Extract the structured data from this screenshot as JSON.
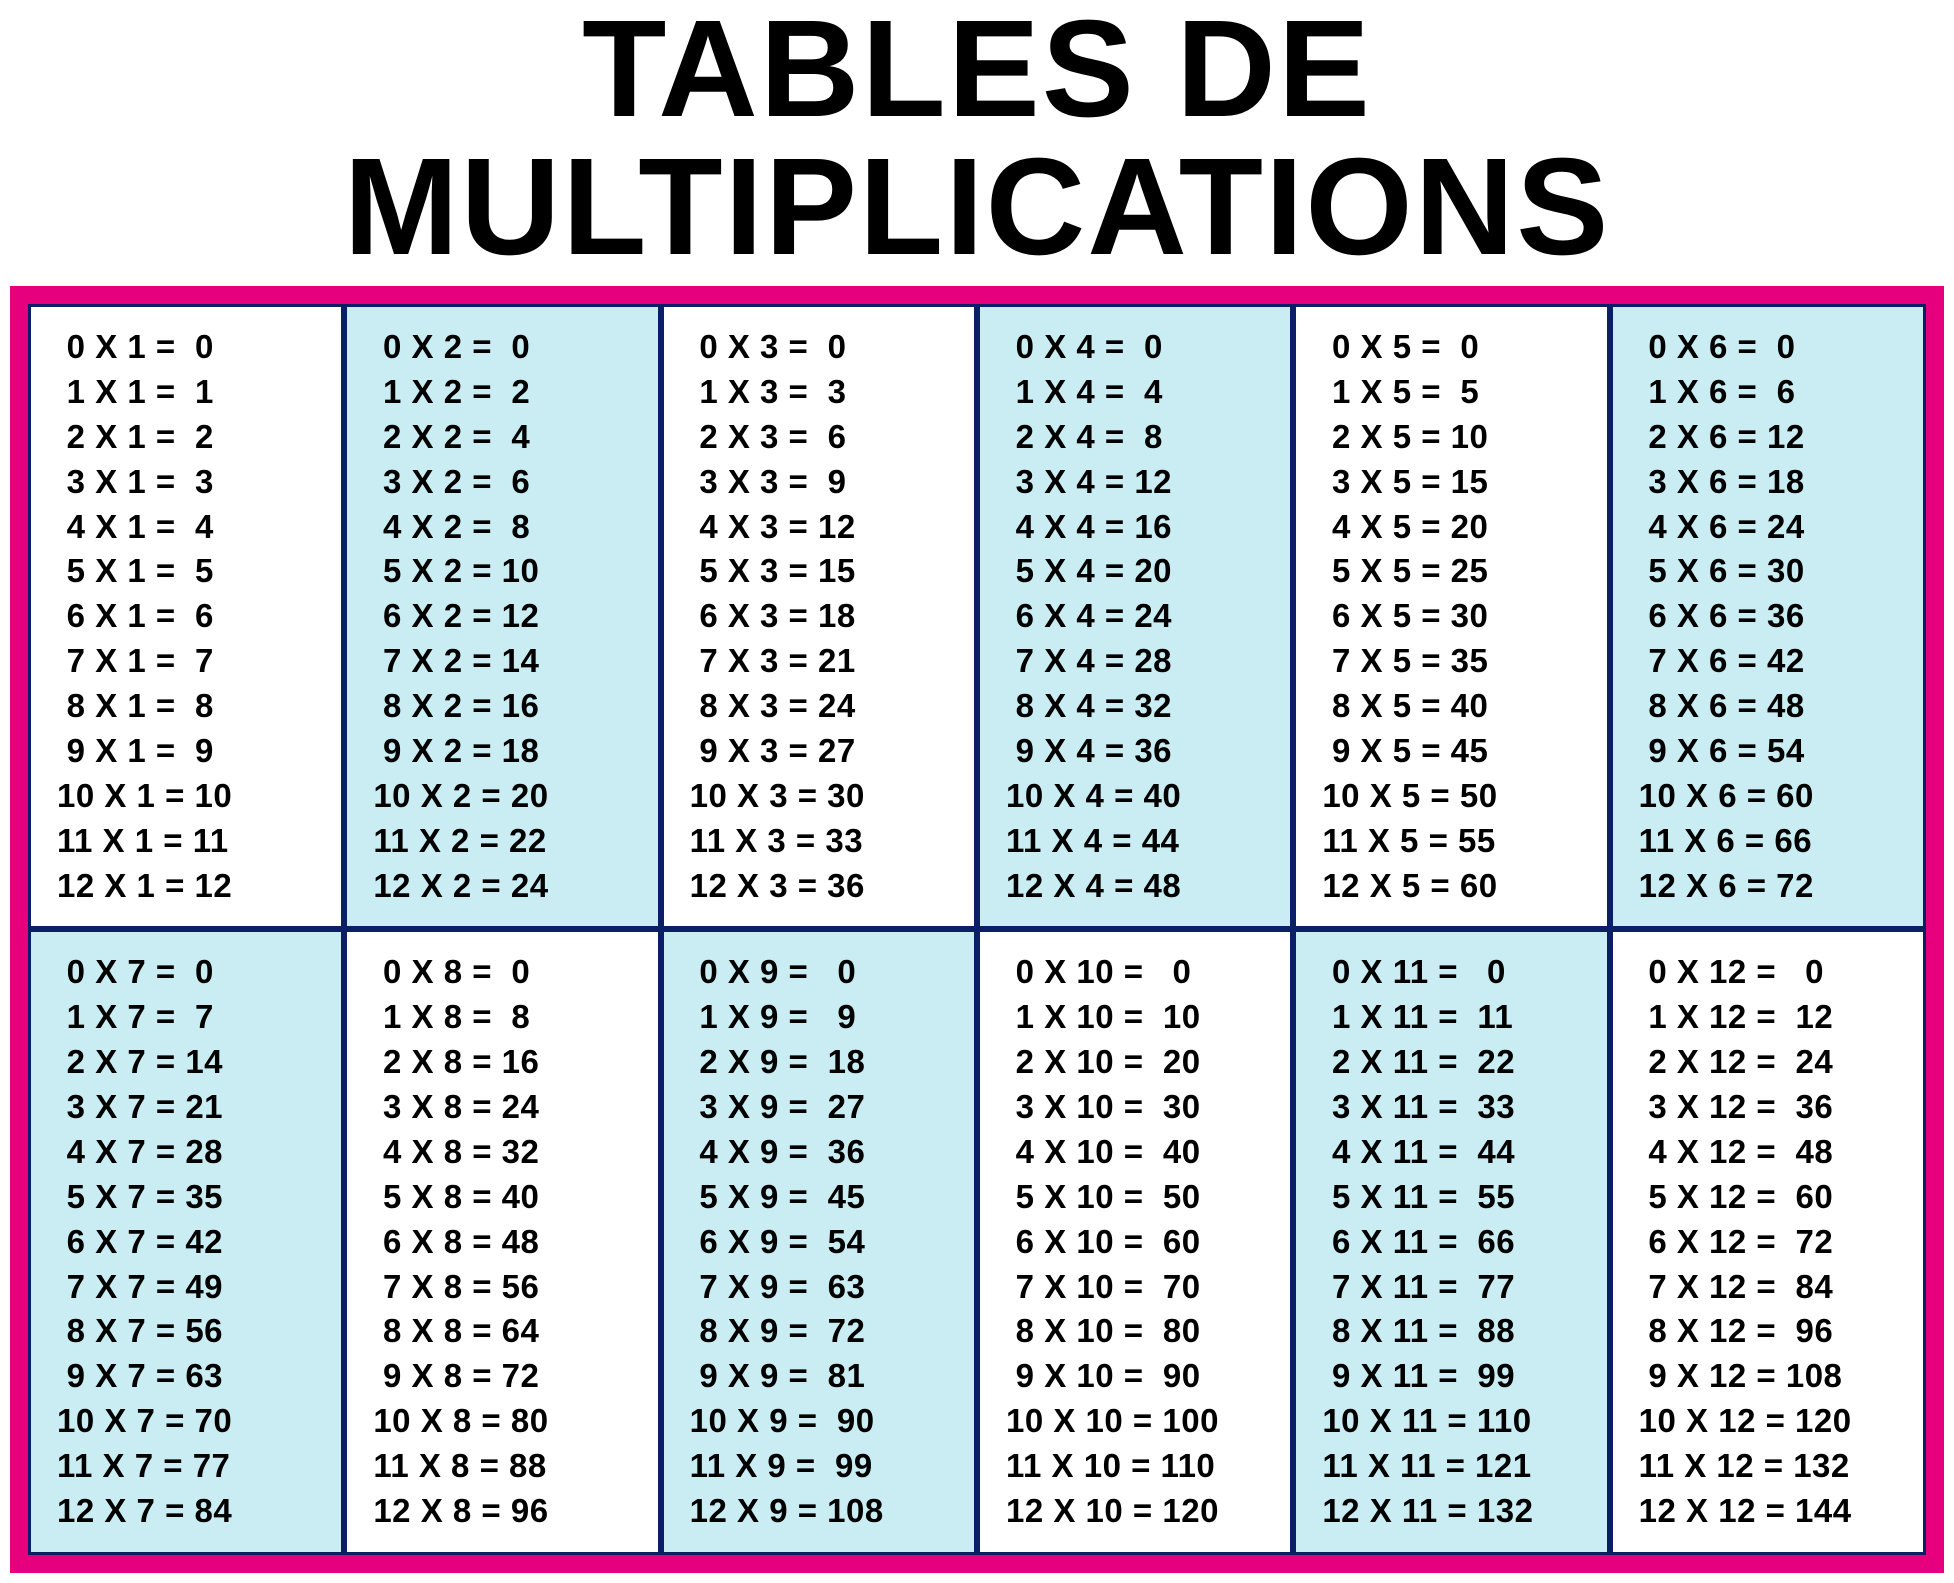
{
  "title": "TABLES DE MULTIPLICATIONS",
  "colors": {
    "frame": "#e6007e",
    "cell_border": "#0b1f66",
    "bg_white": "#ffffff",
    "bg_blue": "#c9edf2",
    "text": "#000000"
  },
  "layout": {
    "columns": 6,
    "rows": 2,
    "multiplicand_start": 0,
    "multiplicand_end": 12,
    "multiplier_start": 1,
    "multiplier_end": 12,
    "alternating_bg": [
      "#ffffff",
      "#c9edf2"
    ],
    "title_fontsize": 138,
    "row_fontsize": 33,
    "row_fontweight": 700
  },
  "tables": [
    {
      "multiplier": 1,
      "bg": "#ffffff",
      "rows": [
        [
          0,
          1,
          0
        ],
        [
          1,
          1,
          1
        ],
        [
          2,
          1,
          2
        ],
        [
          3,
          1,
          3
        ],
        [
          4,
          1,
          4
        ],
        [
          5,
          1,
          5
        ],
        [
          6,
          1,
          6
        ],
        [
          7,
          1,
          7
        ],
        [
          8,
          1,
          8
        ],
        [
          9,
          1,
          9
        ],
        [
          10,
          1,
          10
        ],
        [
          11,
          1,
          11
        ],
        [
          12,
          1,
          12
        ]
      ]
    },
    {
      "multiplier": 2,
      "bg": "#c9edf2",
      "rows": [
        [
          0,
          2,
          0
        ],
        [
          1,
          2,
          2
        ],
        [
          2,
          2,
          4
        ],
        [
          3,
          2,
          6
        ],
        [
          4,
          2,
          8
        ],
        [
          5,
          2,
          10
        ],
        [
          6,
          2,
          12
        ],
        [
          7,
          2,
          14
        ],
        [
          8,
          2,
          16
        ],
        [
          9,
          2,
          18
        ],
        [
          10,
          2,
          20
        ],
        [
          11,
          2,
          22
        ],
        [
          12,
          2,
          24
        ]
      ]
    },
    {
      "multiplier": 3,
      "bg": "#ffffff",
      "rows": [
        [
          0,
          3,
          0
        ],
        [
          1,
          3,
          3
        ],
        [
          2,
          3,
          6
        ],
        [
          3,
          3,
          9
        ],
        [
          4,
          3,
          12
        ],
        [
          5,
          3,
          15
        ],
        [
          6,
          3,
          18
        ],
        [
          7,
          3,
          21
        ],
        [
          8,
          3,
          24
        ],
        [
          9,
          3,
          27
        ],
        [
          10,
          3,
          30
        ],
        [
          11,
          3,
          33
        ],
        [
          12,
          3,
          36
        ]
      ]
    },
    {
      "multiplier": 4,
      "bg": "#c9edf2",
      "rows": [
        [
          0,
          4,
          0
        ],
        [
          1,
          4,
          4
        ],
        [
          2,
          4,
          8
        ],
        [
          3,
          4,
          12
        ],
        [
          4,
          4,
          16
        ],
        [
          5,
          4,
          20
        ],
        [
          6,
          4,
          24
        ],
        [
          7,
          4,
          28
        ],
        [
          8,
          4,
          32
        ],
        [
          9,
          4,
          36
        ],
        [
          10,
          4,
          40
        ],
        [
          11,
          4,
          44
        ],
        [
          12,
          4,
          48
        ]
      ]
    },
    {
      "multiplier": 5,
      "bg": "#ffffff",
      "rows": [
        [
          0,
          5,
          0
        ],
        [
          1,
          5,
          5
        ],
        [
          2,
          5,
          10
        ],
        [
          3,
          5,
          15
        ],
        [
          4,
          5,
          20
        ],
        [
          5,
          5,
          25
        ],
        [
          6,
          5,
          30
        ],
        [
          7,
          5,
          35
        ],
        [
          8,
          5,
          40
        ],
        [
          9,
          5,
          45
        ],
        [
          10,
          5,
          50
        ],
        [
          11,
          5,
          55
        ],
        [
          12,
          5,
          60
        ]
      ]
    },
    {
      "multiplier": 6,
      "bg": "#c9edf2",
      "rows": [
        [
          0,
          6,
          0
        ],
        [
          1,
          6,
          6
        ],
        [
          2,
          6,
          12
        ],
        [
          3,
          6,
          18
        ],
        [
          4,
          6,
          24
        ],
        [
          5,
          6,
          30
        ],
        [
          6,
          6,
          36
        ],
        [
          7,
          6,
          42
        ],
        [
          8,
          6,
          48
        ],
        [
          9,
          6,
          54
        ],
        [
          10,
          6,
          60
        ],
        [
          11,
          6,
          66
        ],
        [
          12,
          6,
          72
        ]
      ]
    },
    {
      "multiplier": 7,
      "bg": "#c9edf2",
      "rows": [
        [
          0,
          7,
          0
        ],
        [
          1,
          7,
          7
        ],
        [
          2,
          7,
          14
        ],
        [
          3,
          7,
          21
        ],
        [
          4,
          7,
          28
        ],
        [
          5,
          7,
          35
        ],
        [
          6,
          7,
          42
        ],
        [
          7,
          7,
          49
        ],
        [
          8,
          7,
          56
        ],
        [
          9,
          7,
          63
        ],
        [
          10,
          7,
          70
        ],
        [
          11,
          7,
          77
        ],
        [
          12,
          7,
          84
        ]
      ]
    },
    {
      "multiplier": 8,
      "bg": "#ffffff",
      "rows": [
        [
          0,
          8,
          0
        ],
        [
          1,
          8,
          8
        ],
        [
          2,
          8,
          16
        ],
        [
          3,
          8,
          24
        ],
        [
          4,
          8,
          32
        ],
        [
          5,
          8,
          40
        ],
        [
          6,
          8,
          48
        ],
        [
          7,
          8,
          56
        ],
        [
          8,
          8,
          64
        ],
        [
          9,
          8,
          72
        ],
        [
          10,
          8,
          80
        ],
        [
          11,
          8,
          88
        ],
        [
          12,
          8,
          96
        ]
      ]
    },
    {
      "multiplier": 9,
      "bg": "#c9edf2",
      "rows": [
        [
          0,
          9,
          0
        ],
        [
          1,
          9,
          9
        ],
        [
          2,
          9,
          18
        ],
        [
          3,
          9,
          27
        ],
        [
          4,
          9,
          36
        ],
        [
          5,
          9,
          45
        ],
        [
          6,
          9,
          54
        ],
        [
          7,
          9,
          63
        ],
        [
          8,
          9,
          72
        ],
        [
          9,
          9,
          81
        ],
        [
          10,
          9,
          90
        ],
        [
          11,
          9,
          99
        ],
        [
          12,
          9,
          108
        ]
      ]
    },
    {
      "multiplier": 10,
      "bg": "#ffffff",
      "rows": [
        [
          0,
          10,
          0
        ],
        [
          1,
          10,
          10
        ],
        [
          2,
          10,
          20
        ],
        [
          3,
          10,
          30
        ],
        [
          4,
          10,
          40
        ],
        [
          5,
          10,
          50
        ],
        [
          6,
          10,
          60
        ],
        [
          7,
          10,
          70
        ],
        [
          8,
          10,
          80
        ],
        [
          9,
          10,
          90
        ],
        [
          10,
          10,
          100
        ],
        [
          11,
          10,
          110
        ],
        [
          12,
          10,
          120
        ]
      ]
    },
    {
      "multiplier": 11,
      "bg": "#c9edf2",
      "rows": [
        [
          0,
          11,
          0
        ],
        [
          1,
          11,
          11
        ],
        [
          2,
          11,
          22
        ],
        [
          3,
          11,
          33
        ],
        [
          4,
          11,
          44
        ],
        [
          5,
          11,
          55
        ],
        [
          6,
          11,
          66
        ],
        [
          7,
          11,
          77
        ],
        [
          8,
          11,
          88
        ],
        [
          9,
          11,
          99
        ],
        [
          10,
          11,
          110
        ],
        [
          11,
          11,
          121
        ],
        [
          12,
          11,
          132
        ]
      ]
    },
    {
      "multiplier": 12,
      "bg": "#ffffff",
      "rows": [
        [
          0,
          12,
          0
        ],
        [
          1,
          12,
          12
        ],
        [
          2,
          12,
          24
        ],
        [
          3,
          12,
          36
        ],
        [
          4,
          12,
          48
        ],
        [
          5,
          12,
          60
        ],
        [
          6,
          12,
          72
        ],
        [
          7,
          12,
          84
        ],
        [
          8,
          12,
          96
        ],
        [
          9,
          12,
          108
        ],
        [
          10,
          12,
          120
        ],
        [
          11,
          12,
          132
        ],
        [
          12,
          12,
          144
        ]
      ]
    }
  ]
}
